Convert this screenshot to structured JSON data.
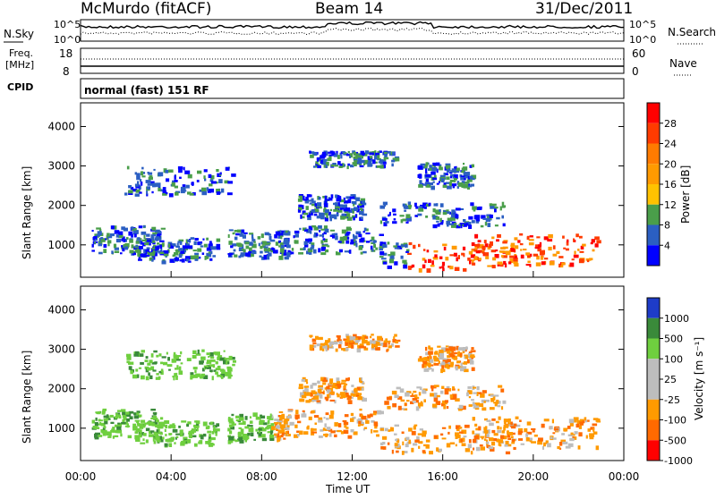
{
  "header": {
    "station": "McMurdo (fitACF)",
    "beam": "Beam 14",
    "date": "31/Dec/2011"
  },
  "noise_panel": {
    "left_label": "N.Sky",
    "ticks_left": [
      "10^5",
      "10^0"
    ],
    "ticks_right": [
      "10^5",
      "10^0"
    ],
    "right_label": "N.Search"
  },
  "freq_panel": {
    "left_label_1": "Freq.",
    "left_label_2": "[MHz]",
    "ticks_left": [
      "18",
      "8"
    ],
    "ticks_right": [
      "60",
      "0"
    ],
    "right_label": "Nave"
  },
  "cpid": {
    "label": "CPID",
    "text": "normal (fast) 151 RF"
  },
  "chart_data": [
    {
      "type": "heatmap",
      "name": "power",
      "ylabel": "Slant Range [km]",
      "ylim": [
        180,
        4600
      ],
      "yticks": [
        "4000",
        "3000",
        "2000",
        "1000"
      ],
      "colorbar": {
        "label": "Power [dB]",
        "ticks": [
          "28",
          "24",
          "20",
          "16",
          "12",
          "8",
          "4"
        ],
        "colors": [
          "#ff0000",
          "#ff3b00",
          "#ff7b00",
          "#ff9a00",
          "#ffc200",
          "#4a9e4a",
          "#2b5fc2",
          "#0000ff"
        ]
      }
    },
    {
      "type": "heatmap",
      "name": "velocity",
      "ylabel": "Slant Range [km]",
      "ylim": [
        180,
        4600
      ],
      "yticks": [
        "4000",
        "3000",
        "2000",
        "1000"
      ],
      "colorbar": {
        "label": "Velocity [m s⁻¹]",
        "ticks": [
          "1000",
          "500",
          "100",
          "25",
          "-25",
          "-100",
          "-500",
          "-1000"
        ],
        "colors": [
          "#1e3cc8",
          "#3a8a3a",
          "#6fcf3f",
          "#bdbdbd",
          "#bdbdbd",
          "#ff9a00",
          "#ff6a00",
          "#ff0000"
        ]
      }
    }
  ],
  "xaxis": {
    "ticks": [
      "00:00",
      "04:00",
      "08:00",
      "12:00",
      "16:00",
      "20:00",
      "00:00"
    ],
    "label": "Time UT"
  }
}
